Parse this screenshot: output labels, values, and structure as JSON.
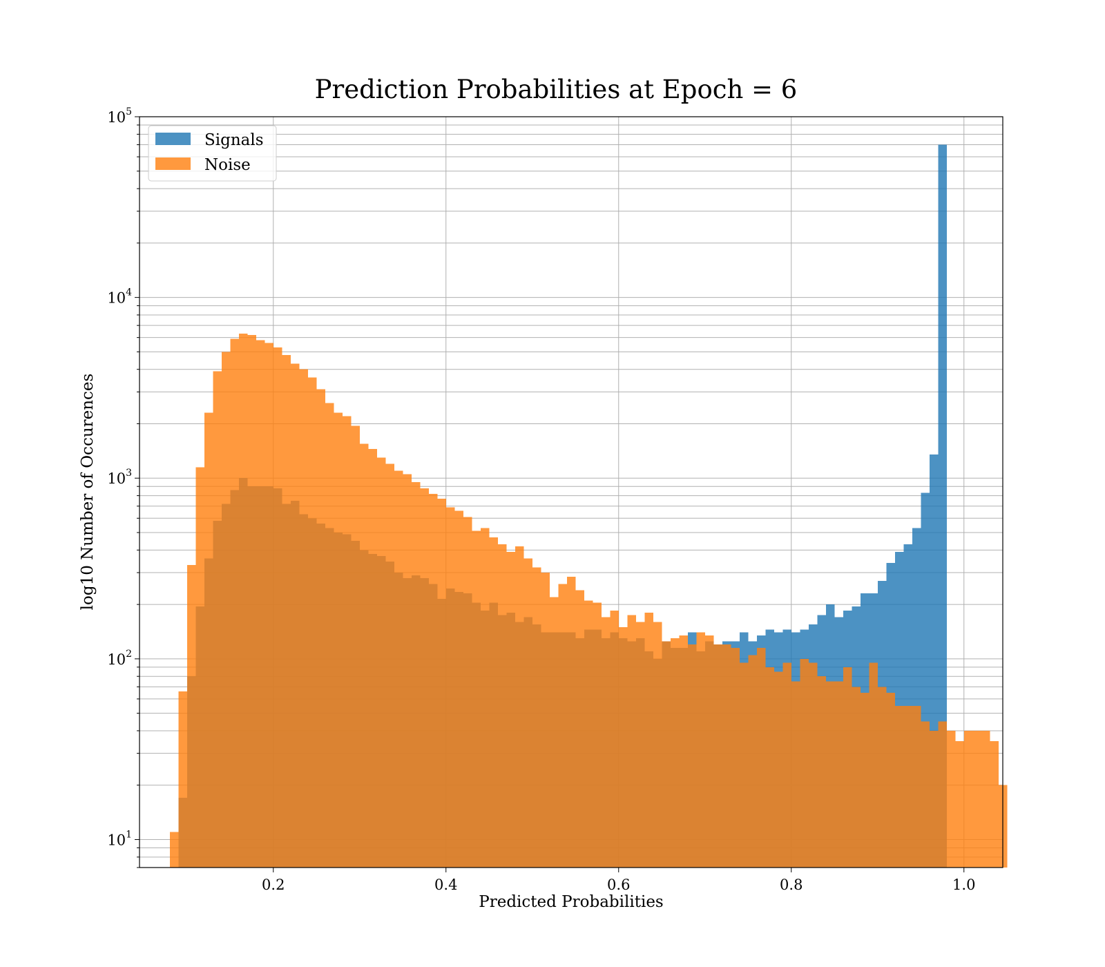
{
  "chart_data": {
    "type": "bar",
    "title": "Prediction Probabilities at Epoch = 6",
    "xlabel": "Predicted Probabilities",
    "ylabel": "log10 Number of Occurences",
    "xlim": [
      0.045,
      1.045
    ],
    "ylim": [
      7,
      100000
    ],
    "yscale": "log",
    "grid": true,
    "legend_position": "top-left",
    "bin_width": 0.01,
    "x_ticks": [
      {
        "value": 0.2,
        "label": "0.2"
      },
      {
        "value": 0.4,
        "label": "0.4"
      },
      {
        "value": 0.6,
        "label": "0.6"
      },
      {
        "value": 0.8,
        "label": "0.8"
      },
      {
        "value": 1.0,
        "label": "1.0"
      }
    ],
    "y_ticks": [
      {
        "value": 10,
        "base": "10",
        "exp": "1"
      },
      {
        "value": 100,
        "base": "10",
        "exp": "2"
      },
      {
        "value": 1000,
        "base": "10",
        "exp": "3"
      },
      {
        "value": 10000,
        "base": "10",
        "exp": "4"
      },
      {
        "value": 100000,
        "base": "10",
        "exp": "5"
      }
    ],
    "series": [
      {
        "name": "Signals",
        "color": "#1f77b4",
        "opacity": 0.8,
        "bin_start": 0.09,
        "values": [
          17,
          80,
          195,
          360,
          580,
          720,
          860,
          1000,
          900,
          900,
          900,
          880,
          720,
          750,
          630,
          600,
          560,
          530,
          500,
          490,
          450,
          400,
          380,
          370,
          345,
          300,
          280,
          290,
          280,
          260,
          215,
          245,
          235,
          230,
          205,
          185,
          205,
          175,
          180,
          160,
          170,
          155,
          140,
          140,
          140,
          140,
          130,
          145,
          145,
          130,
          140,
          130,
          125,
          130,
          110,
          100,
          125,
          115,
          115,
          140,
          110,
          125,
          120,
          125,
          125,
          140,
          125,
          135,
          145,
          140,
          145,
          140,
          145,
          155,
          175,
          200,
          170,
          185,
          195,
          230,
          230,
          270,
          340,
          390,
          430,
          530,
          830,
          1350,
          70000
        ]
      },
      {
        "name": "Noise",
        "color": "#ff7f0e",
        "opacity": 0.8,
        "bin_start": 0.08,
        "values": [
          11,
          66,
          330,
          1150,
          2300,
          3900,
          5000,
          5900,
          6300,
          6200,
          5800,
          5600,
          5300,
          4800,
          4300,
          4000,
          3600,
          3100,
          2600,
          2300,
          2200,
          1950,
          1550,
          1450,
          1300,
          1200,
          1100,
          1050,
          950,
          880,
          820,
          770,
          690,
          660,
          610,
          510,
          530,
          470,
          430,
          390,
          420,
          360,
          320,
          300,
          220,
          260,
          285,
          240,
          210,
          205,
          170,
          185,
          150,
          175,
          160,
          180,
          160,
          125,
          130,
          135,
          120,
          140,
          135,
          120,
          120,
          115,
          95,
          105,
          115,
          90,
          85,
          95,
          75,
          100,
          95,
          80,
          75,
          75,
          90,
          70,
          65,
          95,
          70,
          65,
          55,
          55,
          55,
          45,
          40,
          45,
          40,
          35,
          40,
          40,
          40,
          35,
          20
        ]
      }
    ]
  }
}
